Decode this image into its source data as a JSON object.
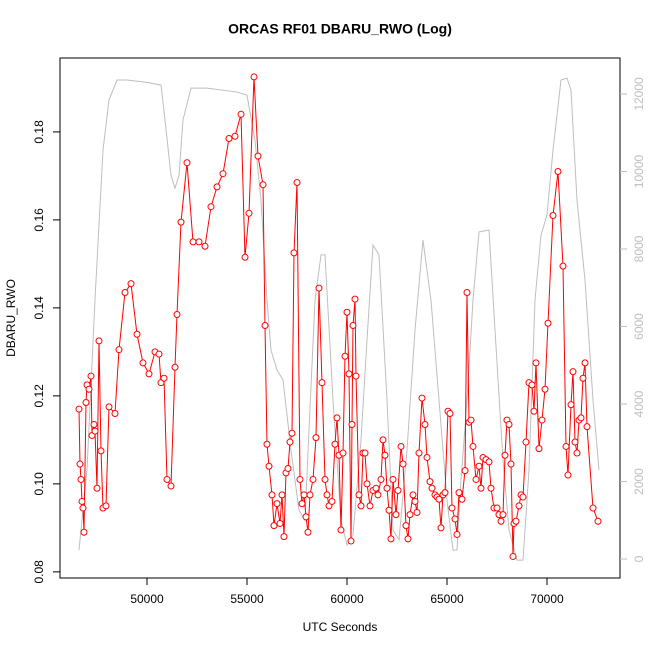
{
  "chart_data": {
    "type": "line",
    "title": "ORCAS RF01 DBARU_RWO (Log)",
    "x_label": "UTC Seconds",
    "y_label": "DBARU_RWO",
    "xlim": [
      45650,
      73650
    ],
    "xticks": [
      50000,
      55000,
      60000,
      65000,
      70000
    ],
    "ylim": [
      0.0786,
      0.1968
    ],
    "yticks": [
      0.08,
      {
        "value": 0.1,
        "label": "0.10"
      },
      0.12,
      0.14,
      0.16,
      0.18
    ],
    "y2lim": [
      -490,
      12929
    ],
    "y2ticks": [
      0,
      2000,
      4000,
      6000,
      8000,
      10000,
      12000
    ],
    "y2_color": "#bebebe",
    "series": [
      {
        "color": "#bebebe",
        "axis": "y2",
        "x": [
          46600,
          47000,
          47400,
          47800,
          48100,
          48500,
          49000,
          50000,
          50700,
          50900,
          51200,
          51400,
          51600,
          51800,
          52200,
          53000,
          54500,
          55000,
          55400,
          55700,
          56000,
          56200,
          56500,
          56800,
          57200,
          57600,
          57900,
          58100,
          58400,
          58700,
          58900,
          59300,
          59700,
          60000,
          60300,
          60700,
          61000,
          61300,
          61600,
          62000,
          62300,
          62600,
          63000,
          63400,
          63800,
          64200,
          64600,
          65000,
          65300,
          65500,
          65700,
          66000,
          66300,
          66600,
          67100,
          67400,
          67800,
          68100,
          68500,
          68800,
          69100,
          69400,
          69700,
          70000,
          70300,
          70700,
          71000,
          71200,
          71500,
          71900,
          72300,
          72600
        ],
        "values": [
          230,
          2300,
          6700,
          10550,
          11850,
          12360,
          12360,
          12300,
          12230,
          11330,
          9900,
          9570,
          9900,
          11330,
          12150,
          12150,
          12050,
          11970,
          10800,
          9260,
          6680,
          5390,
          4880,
          4620,
          2810,
          1260,
          1000,
          3330,
          6680,
          7850,
          7850,
          4100,
          1000,
          360,
          620,
          3070,
          5650,
          8100,
          7850,
          4100,
          750,
          490,
          2810,
          5910,
          8230,
          6680,
          4100,
          1520,
          230,
          230,
          2040,
          4100,
          6680,
          8440,
          8490,
          5910,
          2550,
          750,
          -30,
          -30,
          2300,
          6680,
          8360,
          8880,
          10550,
          12360,
          12410,
          12100,
          9260,
          7200,
          4100,
          2300
        ]
      },
      {
        "color": "#ff0000",
        "marker": "circle",
        "x": [
          46600,
          46650,
          46700,
          46750,
          46800,
          46850,
          46950,
          47000,
          47100,
          47200,
          47250,
          47350,
          47400,
          47500,
          47600,
          47700,
          47800,
          47950,
          48100,
          48400,
          48600,
          48900,
          49200,
          49500,
          49800,
          50100,
          50400,
          50600,
          50700,
          50850,
          51000,
          51200,
          51400,
          51500,
          51700,
          52000,
          52300,
          52600,
          52900,
          53200,
          53500,
          53800,
          54100,
          54400,
          54700,
          54900,
          55100,
          55350,
          55550,
          55800,
          55900,
          56000,
          56100,
          56250,
          56350,
          56500,
          56650,
          56750,
          56850,
          56950,
          57050,
          57150,
          57250,
          57350,
          57500,
          57650,
          57750,
          57850,
          57950,
          58050,
          58150,
          58300,
          58450,
          58600,
          58750,
          58900,
          59000,
          59100,
          59250,
          59400,
          59500,
          59600,
          59700,
          59800,
          59900,
          60000,
          60100,
          60200,
          60250,
          60300,
          60400,
          60450,
          60600,
          60700,
          60800,
          60900,
          61000,
          61150,
          61300,
          61450,
          61550,
          61700,
          61800,
          61900,
          62000,
          62100,
          62200,
          62300,
          62450,
          62550,
          62700,
          62800,
          62950,
          63050,
          63150,
          63300,
          63400,
          63500,
          63600,
          63750,
          63900,
          64000,
          64150,
          64250,
          64400,
          64500,
          64600,
          64700,
          64800,
          64900,
          65050,
          65150,
          65250,
          65400,
          65500,
          65600,
          65750,
          65900,
          66000,
          66100,
          66200,
          66300,
          66450,
          66600,
          66700,
          66800,
          66950,
          67100,
          67200,
          67350,
          67500,
          67600,
          67700,
          67800,
          67900,
          68000,
          68100,
          68200,
          68300,
          68350,
          68450,
          68600,
          68700,
          68800,
          68950,
          69100,
          69250,
          69350,
          69450,
          69600,
          69750,
          69900,
          70050,
          70300,
          70550,
          70800,
          70950,
          71050,
          71200,
          71300,
          71400,
          71500,
          71600,
          71700,
          71800,
          71900,
          72000,
          72300,
          72550
        ],
        "values": [
          0.117,
          0.1045,
          0.101,
          0.096,
          0.0945,
          0.089,
          0.1185,
          0.1225,
          0.1215,
          0.1245,
          0.111,
          0.1135,
          0.112,
          0.099,
          0.1325,
          0.1075,
          0.0945,
          0.095,
          0.1175,
          0.116,
          0.1305,
          0.1435,
          0.1455,
          0.134,
          0.1275,
          0.125,
          0.13,
          0.1295,
          0.123,
          0.124,
          0.101,
          0.0995,
          0.1265,
          0.1385,
          0.1595,
          0.173,
          0.155,
          0.155,
          0.154,
          0.163,
          0.1675,
          0.1705,
          0.1785,
          0.179,
          0.184,
          0.1515,
          0.1615,
          0.1925,
          0.1745,
          0.168,
          0.136,
          0.109,
          0.104,
          0.0975,
          0.0905,
          0.0955,
          0.091,
          0.0975,
          0.088,
          0.1025,
          0.1035,
          0.1095,
          0.1115,
          0.1525,
          0.1685,
          0.101,
          0.0955,
          0.0975,
          0.0925,
          0.089,
          0.0975,
          0.101,
          0.1105,
          0.1445,
          0.123,
          0.101,
          0.0975,
          0.095,
          0.096,
          0.109,
          0.115,
          0.1065,
          0.0895,
          0.107,
          0.129,
          0.139,
          0.125,
          0.087,
          0.1135,
          0.136,
          0.142,
          0.1245,
          0.0975,
          0.095,
          0.107,
          0.107,
          0.1,
          0.095,
          0.0985,
          0.099,
          0.0975,
          0.101,
          0.11,
          0.1065,
          0.099,
          0.094,
          0.0875,
          0.101,
          0.093,
          0.0985,
          0.1085,
          0.1045,
          0.0905,
          0.0875,
          0.093,
          0.0975,
          0.096,
          0.0935,
          0.107,
          0.1195,
          0.1135,
          0.106,
          0.1005,
          0.099,
          0.0975,
          0.097,
          0.0965,
          0.09,
          0.0975,
          0.098,
          0.1165,
          0.116,
          0.0945,
          0.092,
          0.0885,
          0.098,
          0.0965,
          0.103,
          0.1435,
          0.114,
          0.1145,
          0.1085,
          0.101,
          0.104,
          0.099,
          0.106,
          0.1055,
          0.105,
          0.099,
          0.0945,
          0.0945,
          0.093,
          0.0915,
          0.093,
          0.1065,
          0.1145,
          0.1135,
          0.1045,
          0.0835,
          0.091,
          0.0915,
          0.095,
          0.0975,
          0.097,
          0.1095,
          0.123,
          0.1225,
          0.1165,
          0.1275,
          0.108,
          0.1145,
          0.1215,
          0.1365,
          0.161,
          0.171,
          0.1495,
          0.1085,
          0.102,
          0.118,
          0.1255,
          0.1095,
          0.107,
          0.1145,
          0.115,
          0.124,
          0.1275,
          0.113,
          0.0945,
          0.0915
        ]
      }
    ]
  }
}
